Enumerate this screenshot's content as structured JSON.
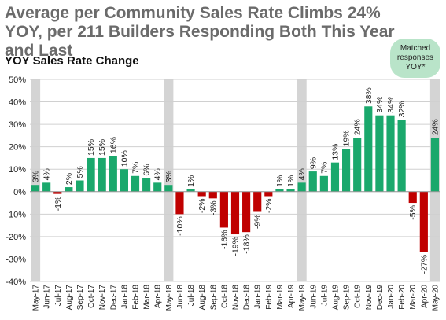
{
  "title": "Average per Community Sales Rate Climbs 24% YOY, per 211 Builders Responding Both This Year and Last",
  "badge": "Matched\nresponses\nYOY*",
  "colors": {
    "positive": "#1aa86c",
    "negative": "#c00000",
    "band": "#d4d4d4",
    "grid": "#d0d0d0"
  },
  "chart_data": {
    "type": "bar",
    "title": "YOY Sales Rate Change",
    "ylim": [
      -40,
      50
    ],
    "yticks": [
      "50%",
      "40%",
      "30%",
      "20%",
      "10%",
      "0%",
      "-10%",
      "-20%",
      "-30%",
      "-40%"
    ],
    "categories": [
      "May-17",
      "Jun-17",
      "Jul-17",
      "Aug-17",
      "Sep-17",
      "Oct-17",
      "Nov-17",
      "Dec-17",
      "Jan-18",
      "Feb-18",
      "Mar-18",
      "Apr-18",
      "May-18",
      "Jun-18",
      "Jul-18",
      "Aug-18",
      "Sep-18",
      "Oct-18",
      "Nov-18",
      "Dec-18",
      "Jan-19",
      "Feb-19",
      "Mar-19",
      "Apr-19",
      "May-19",
      "Jun-19",
      "Jul-19",
      "Aug-19",
      "Sep-19",
      "Oct-19",
      "Nov-19",
      "Dec-19",
      "Jan-20",
      "Feb-20",
      "Mar-20",
      "Apr-20",
      "May-20"
    ],
    "values": [
      3,
      4,
      -1,
      2,
      5,
      15,
      15,
      16,
      10,
      7,
      6,
      4,
      3,
      -10,
      1,
      -2,
      -3,
      -16,
      -19,
      -18,
      -9,
      -2,
      1,
      1,
      4,
      9,
      7,
      13,
      19,
      24,
      38,
      34,
      34,
      32,
      -5,
      -27,
      24
    ],
    "labels": [
      "3%",
      "4%",
      "-1%",
      "2%",
      "5%",
      "15%",
      "15%",
      "16%",
      "10%",
      "7%",
      "6%",
      "4%",
      "3%",
      "-10%",
      "1%",
      "-2%",
      "-3%",
      "-16%",
      "-19%",
      "-18%",
      "-9%",
      "-2%",
      "1%",
      "1%",
      "4%",
      "9%",
      "7%",
      "13%",
      "19%",
      "24%",
      "38%",
      "34%",
      "34%",
      "32%",
      "-5%",
      "-27%",
      "24%"
    ],
    "highlighted": [
      "May-17",
      "May-18",
      "May-19",
      "May-20"
    ],
    "grid": true,
    "legend": "none"
  }
}
